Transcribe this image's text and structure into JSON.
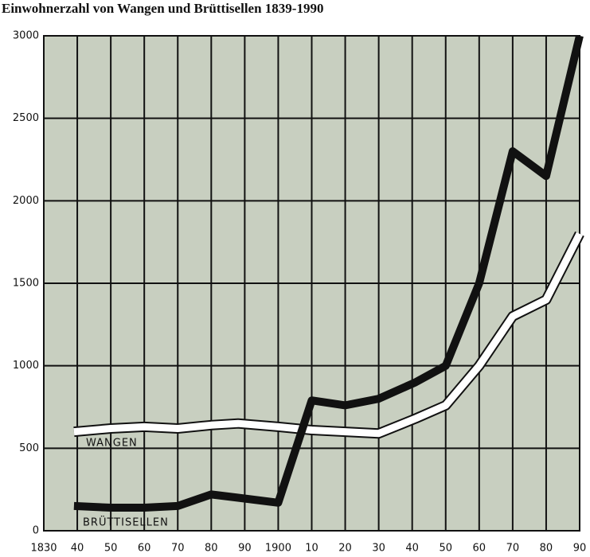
{
  "chart_data": {
    "type": "line",
    "title": "Einwohnerzahl von Wangen und Brüttisellen 1839-1990",
    "x": [
      1839,
      1850,
      1860,
      1870,
      1880,
      1888,
      1900,
      1910,
      1920,
      1930,
      1941,
      1950,
      1960,
      1970,
      1980,
      1990
    ],
    "series": [
      {
        "name": "WANGEN",
        "color": "#ffffff",
        "values": [
          600,
          620,
          630,
          620,
          640,
          650,
          630,
          610,
          600,
          590,
          680,
          760,
          1000,
          1300,
          1400,
          1800
        ]
      },
      {
        "name": "BRÜTTISELLEN",
        "color": "#111111",
        "values": [
          150,
          140,
          140,
          150,
          220,
          200,
          170,
          790,
          760,
          800,
          900,
          1000,
          1500,
          2300,
          2150,
          3000
        ]
      }
    ],
    "xlim": [
      1830,
      1990
    ],
    "xticks": [
      1830,
      {
        "value": 1840,
        "label": "40"
      },
      {
        "value": 1850,
        "label": "50"
      },
      {
        "value": 1860,
        "label": "60"
      },
      {
        "value": 1870,
        "label": "70"
      },
      {
        "value": 1880,
        "label": "80"
      },
      {
        "value": 1890,
        "label": "90"
      },
      1900,
      {
        "value": 1910,
        "label": "10"
      },
      {
        "value": 1920,
        "label": "20"
      },
      {
        "value": 1930,
        "label": "30"
      },
      {
        "value": 1940,
        "label": "40"
      },
      {
        "value": 1950,
        "label": "50"
      },
      {
        "value": 1960,
        "label": "60"
      },
      {
        "value": 1970,
        "label": "70"
      },
      {
        "value": 1980,
        "label": "80"
      },
      {
        "value": 1990,
        "label": "90"
      }
    ],
    "ylim": [
      0,
      3000
    ],
    "yticks": [
      0,
      500,
      1000,
      1500,
      2000,
      2500,
      3000
    ],
    "grid": true
  }
}
